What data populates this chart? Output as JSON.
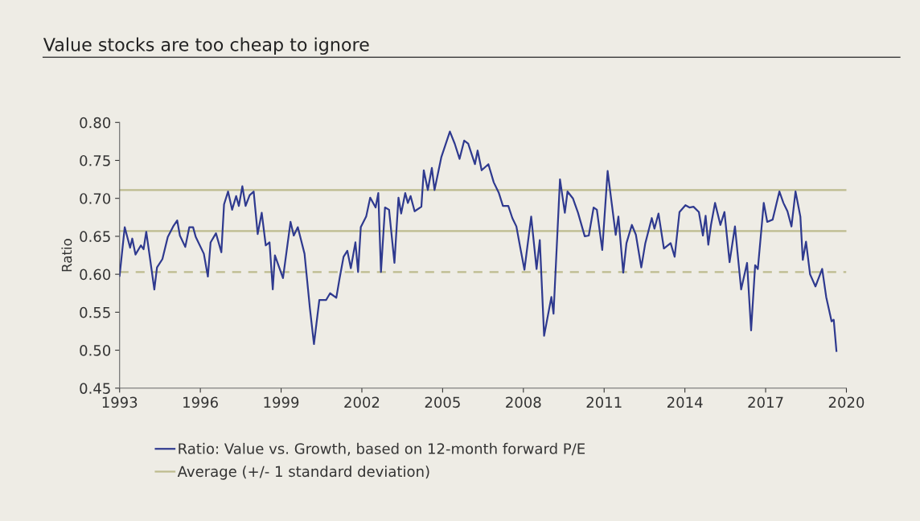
{
  "chart_data": {
    "type": "line",
    "title": "Value stocks are too cheap to ignore",
    "ylabel": "Ratio",
    "xlim": [
      1993,
      2020
    ],
    "xticks": [
      1993,
      1996,
      1999,
      2002,
      2005,
      2008,
      2011,
      2014,
      2017,
      2020
    ],
    "ylim": [
      0.45,
      0.8
    ],
    "yticks": [
      {
        "value": 0.45,
        "label": "0.45"
      },
      {
        "value": 0.5,
        "label": "0.50"
      },
      {
        "value": 0.55,
        "label": "0.55"
      },
      {
        "value": 0.6,
        "label": "0.60"
      },
      {
        "value": 0.65,
        "label": "0.65"
      },
      {
        "value": 0.7,
        "label": "0.70"
      },
      {
        "value": 0.75,
        "label": "0.75"
      },
      {
        "value": 0.8,
        "label": "0.80"
      }
    ],
    "grid": false,
    "legend": "bottom",
    "marker": "none",
    "line_style": "solid",
    "ref_lines": [
      {
        "axis": "y",
        "value": 0.711,
        "color": "#bdbb8e",
        "line_style": "solid"
      },
      {
        "axis": "y",
        "value": 0.657,
        "color": "#bdbb8e",
        "line_style": "solid",
        "label": "Average (+/- 1 standard deviation)"
      },
      {
        "axis": "y",
        "value": 0.603,
        "color": "#bdbb8e",
        "line_style": "dashed"
      }
    ],
    "series": [
      {
        "name": "Ratio: Value vs. Growth, based on 12-month forward P/E",
        "color": "#2f3a8f",
        "x": [
          1993.0,
          1993.19,
          1993.39,
          1993.47,
          1993.59,
          1993.79,
          1993.89,
          1993.99,
          1994.09,
          1994.29,
          1994.39,
          1994.59,
          1994.79,
          1994.99,
          1995.14,
          1995.24,
          1995.44,
          1995.59,
          1995.73,
          1995.83,
          1996.13,
          1996.28,
          1996.38,
          1996.58,
          1996.78,
          1996.88,
          1997.03,
          1997.18,
          1997.33,
          1997.43,
          1997.56,
          1997.68,
          1997.83,
          1997.98,
          1998.13,
          1998.28,
          1998.43,
          1998.57,
          1998.69,
          1998.77,
          1999.07,
          1999.35,
          1999.47,
          1999.62,
          1999.87,
          2000.07,
          2000.22,
          2000.42,
          2000.67,
          2000.82,
          2001.05,
          2001.17,
          2001.32,
          2001.46,
          2001.59,
          2001.76,
          2001.86,
          2001.96,
          2002.16,
          2002.31,
          2002.51,
          2002.61,
          2002.71,
          2002.86,
          2003.01,
          2003.21,
          2003.36,
          2003.46,
          2003.61,
          2003.71,
          2003.81,
          2003.96,
          2004.21,
          2004.3,
          2004.45,
          2004.6,
          2004.7,
          2004.95,
          2005.1,
          2005.27,
          2005.45,
          2005.63,
          2005.8,
          2005.95,
          2006.2,
          2006.3,
          2006.45,
          2006.7,
          2006.9,
          2007.09,
          2007.24,
          2007.44,
          2007.59,
          2007.74,
          2007.89,
          2008.04,
          2008.29,
          2008.49,
          2008.61,
          2008.77,
          2009.04,
          2009.12,
          2009.36,
          2009.54,
          2009.64,
          2009.84,
          2010.03,
          2010.28,
          2010.43,
          2010.61,
          2010.73,
          2010.93,
          2011.13,
          2011.43,
          2011.53,
          2011.71,
          2011.83,
          2012.03,
          2012.18,
          2012.38,
          2012.53,
          2012.77,
          2012.87,
          2013.02,
          2013.22,
          2013.47,
          2013.62,
          2013.8,
          2014.02,
          2014.17,
          2014.32,
          2014.52,
          2014.67,
          2014.77,
          2014.87,
          2014.97,
          2015.12,
          2015.32,
          2015.47,
          2015.66,
          2015.86,
          2016.09,
          2016.31,
          2016.46,
          2016.61,
          2016.71,
          2016.93,
          2017.06,
          2017.26,
          2017.51,
          2017.66,
          2017.81,
          2017.96,
          2018.11,
          2018.29,
          2018.38,
          2018.5,
          2018.65,
          2018.85,
          2019.1,
          2019.25,
          2019.45,
          2019.53,
          2019.63
        ],
        "values": [
          0.598,
          0.662,
          0.635,
          0.647,
          0.626,
          0.638,
          0.633,
          0.656,
          0.631,
          0.58,
          0.609,
          0.62,
          0.649,
          0.663,
          0.671,
          0.651,
          0.636,
          0.662,
          0.662,
          0.649,
          0.627,
          0.597,
          0.642,
          0.654,
          0.629,
          0.692,
          0.709,
          0.685,
          0.703,
          0.69,
          0.716,
          0.69,
          0.704,
          0.709,
          0.653,
          0.681,
          0.638,
          0.642,
          0.58,
          0.625,
          0.595,
          0.669,
          0.651,
          0.662,
          0.627,
          0.555,
          0.508,
          0.566,
          0.566,
          0.575,
          0.569,
          0.594,
          0.623,
          0.631,
          0.608,
          0.642,
          0.603,
          0.662,
          0.676,
          0.701,
          0.688,
          0.707,
          0.603,
          0.688,
          0.685,
          0.615,
          0.701,
          0.68,
          0.707,
          0.694,
          0.703,
          0.683,
          0.689,
          0.737,
          0.711,
          0.74,
          0.711,
          0.754,
          0.77,
          0.788,
          0.772,
          0.752,
          0.776,
          0.772,
          0.745,
          0.763,
          0.737,
          0.745,
          0.721,
          0.707,
          0.69,
          0.69,
          0.674,
          0.663,
          0.634,
          0.606,
          0.676,
          0.607,
          0.645,
          0.519,
          0.57,
          0.548,
          0.725,
          0.681,
          0.709,
          0.7,
          0.681,
          0.65,
          0.651,
          0.688,
          0.685,
          0.632,
          0.736,
          0.652,
          0.676,
          0.602,
          0.641,
          0.665,
          0.652,
          0.609,
          0.641,
          0.674,
          0.66,
          0.68,
          0.634,
          0.641,
          0.623,
          0.682,
          0.691,
          0.688,
          0.689,
          0.682,
          0.651,
          0.677,
          0.639,
          0.665,
          0.694,
          0.665,
          0.682,
          0.616,
          0.663,
          0.58,
          0.615,
          0.526,
          0.612,
          0.607,
          0.694,
          0.669,
          0.672,
          0.709,
          0.694,
          0.683,
          0.663,
          0.709,
          0.676,
          0.619,
          0.643,
          0.6,
          0.584,
          0.607,
          0.57,
          0.538,
          0.54,
          0.499
        ]
      }
    ]
  }
}
